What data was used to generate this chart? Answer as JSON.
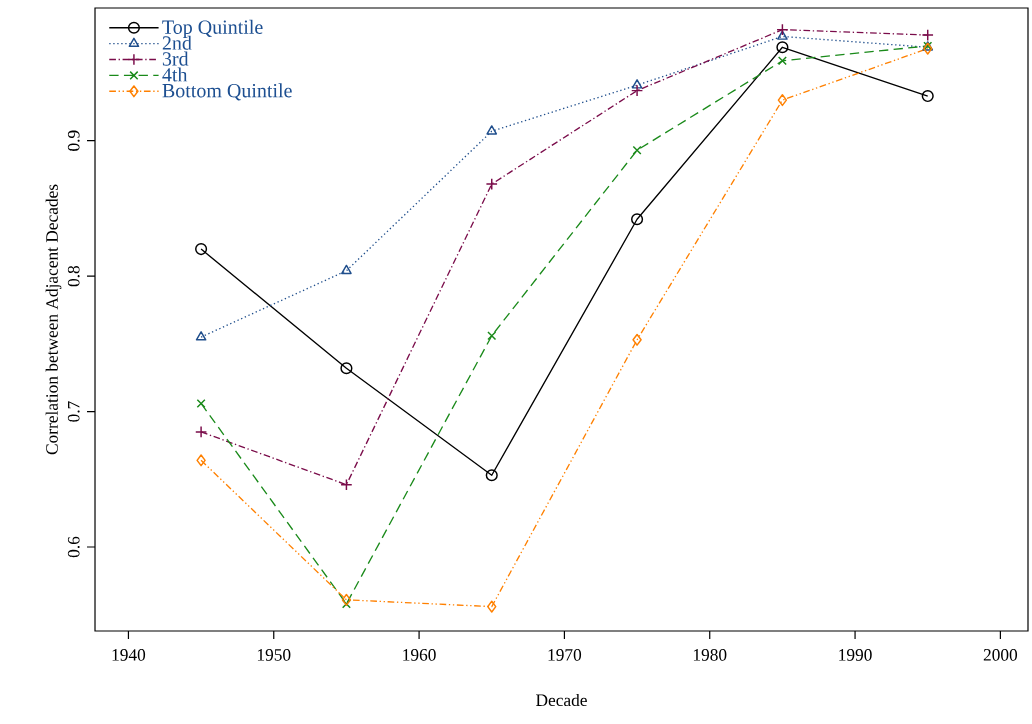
{
  "chart_data": {
    "type": "line",
    "xlabel": "Decade",
    "ylabel": "Correlation between Adjacent Decades",
    "x": [
      1945,
      1955,
      1965,
      1975,
      1985,
      1995
    ],
    "xlim": [
      1937.7,
      2001.9
    ],
    "ylim": [
      0.538,
      0.998
    ],
    "xticks": [
      1940,
      1950,
      1960,
      1970,
      1980,
      1990,
      2000
    ],
    "yticks": [
      0.6,
      0.7,
      0.8,
      0.9
    ],
    "grid": false,
    "legend": "top left",
    "series": [
      {
        "name": "Top Quintile",
        "color": "#000000",
        "marker": "circle",
        "line_style": "solid",
        "values": [
          0.82,
          0.732,
          0.653,
          0.842,
          0.969,
          0.933
        ]
      },
      {
        "name": "2nd",
        "color": "#1f4e8c",
        "marker": "triangle",
        "line_style": "dotted",
        "values": [
          0.755,
          0.804,
          0.907,
          0.941,
          0.977,
          0.969
        ]
      },
      {
        "name": "3rd",
        "color": "#7a0c4a",
        "marker": "plus",
        "line_style": "dashdot",
        "values": [
          0.685,
          0.646,
          0.868,
          0.937,
          0.982,
          0.978
        ]
      },
      {
        "name": "4th",
        "color": "#1a8a1a",
        "marker": "cross",
        "line_style": "dashed",
        "values": [
          0.706,
          0.558,
          0.756,
          0.893,
          0.959,
          0.97
        ]
      },
      {
        "name": "Bottom Quintile",
        "color": "#ff8000",
        "marker": "diamond",
        "line_style": "dashdotdot",
        "values": [
          0.664,
          0.561,
          0.556,
          0.753,
          0.93,
          0.968
        ]
      }
    ]
  }
}
